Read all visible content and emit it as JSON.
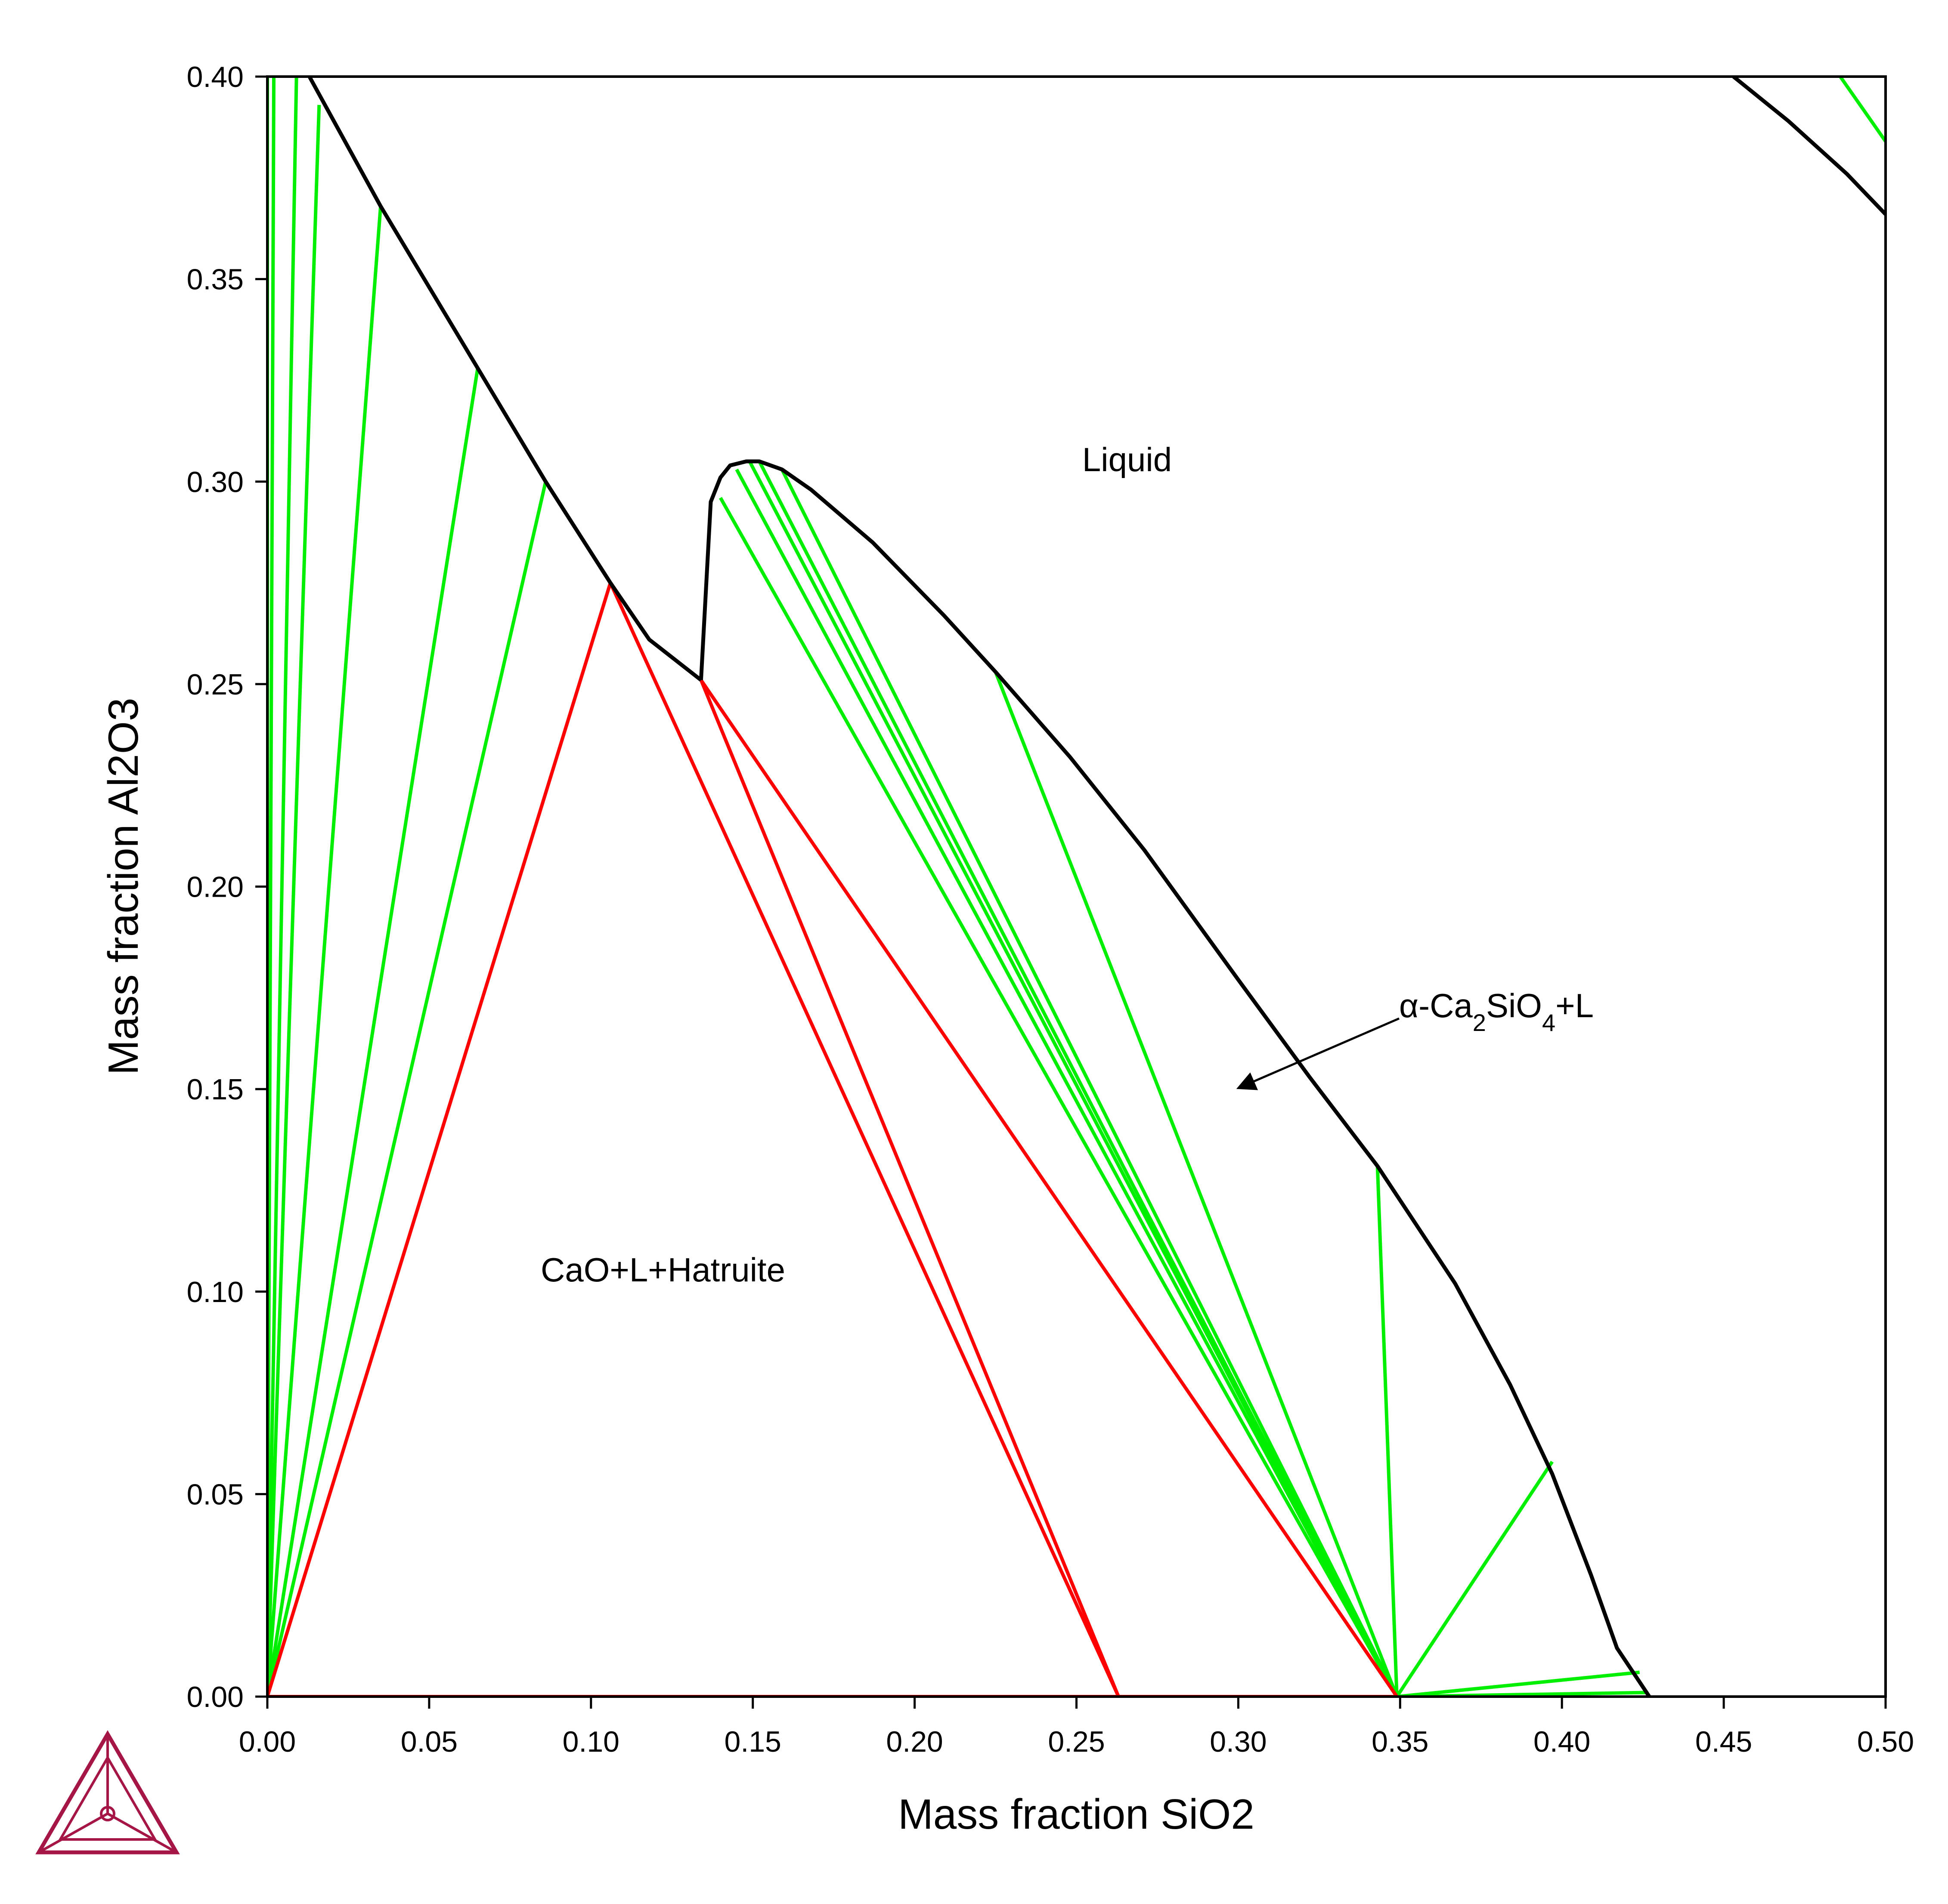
{
  "chart_data": {
    "type": "line",
    "xlabel": "Mass fraction SiO2",
    "ylabel": "Mass fraction Al2O3",
    "xlim": [
      0,
      0.5
    ],
    "ylim": [
      0,
      0.4
    ],
    "x_ticks": [
      "0.00",
      "0.05",
      "0.10",
      "0.15",
      "0.20",
      "0.25",
      "0.30",
      "0.35",
      "0.40",
      "0.45",
      "0.50"
    ],
    "y_ticks": [
      "0.00",
      "0.05",
      "0.10",
      "0.15",
      "0.20",
      "0.25",
      "0.30",
      "0.35",
      "0.40"
    ],
    "grid": false,
    "colors": {
      "boundary": "#000000",
      "tie_line": "#00ee00",
      "invariant": "#ff0000",
      "logo": "#a51646"
    },
    "phase_boundaries": [
      {
        "points": [
          [
            0.013,
            0.4
          ],
          [
            0.035,
            0.368
          ],
          [
            0.065,
            0.328
          ],
          [
            0.086,
            0.3
          ],
          [
            0.106,
            0.275
          ],
          [
            0.118,
            0.261
          ],
          [
            0.134,
            0.251
          ]
        ]
      },
      {
        "points": [
          [
            0.134,
            0.251
          ],
          [
            0.137,
            0.295
          ],
          [
            0.14,
            0.301
          ],
          [
            0.143,
            0.304
          ],
          [
            0.148,
            0.305
          ],
          [
            0.152,
            0.305
          ],
          [
            0.159,
            0.303
          ],
          [
            0.168,
            0.298
          ],
          [
            0.187,
            0.285
          ],
          [
            0.209,
            0.267
          ],
          [
            0.225,
            0.253
          ],
          [
            0.248,
            0.232
          ],
          [
            0.271,
            0.209
          ],
          [
            0.3,
            0.177
          ],
          [
            0.322,
            0.153
          ],
          [
            0.343,
            0.131
          ],
          [
            0.367,
            0.102
          ],
          [
            0.384,
            0.077
          ],
          [
            0.397,
            0.055
          ],
          [
            0.409,
            0.03
          ],
          [
            0.417,
            0.012
          ],
          [
            0.427,
            0.0
          ]
        ]
      },
      {
        "points": [
          [
            0.453,
            0.4
          ],
          [
            0.47,
            0.389
          ],
          [
            0.488,
            0.376
          ],
          [
            0.5,
            0.366
          ]
        ]
      }
    ],
    "tie_lines": [
      [
        [
          0,
          0
        ],
        [
          0.0,
          0.4
        ]
      ],
      [
        [
          0,
          0
        ],
        [
          0.002,
          0.4
        ]
      ],
      [
        [
          0,
          0
        ],
        [
          0.009,
          0.4
        ]
      ],
      [
        [
          0,
          0
        ],
        [
          0.016,
          0.393
        ]
      ],
      [
        [
          0,
          0
        ],
        [
          0.035,
          0.368
        ]
      ],
      [
        [
          0,
          0
        ],
        [
          0.065,
          0.328
        ]
      ],
      [
        [
          0,
          0
        ],
        [
          0.086,
          0.3
        ]
      ],
      [
        [
          0.349,
          0
        ],
        [
          0.14,
          0.296
        ]
      ],
      [
        [
          0.349,
          0
        ],
        [
          0.145,
          0.303
        ]
      ],
      [
        [
          0.349,
          0
        ],
        [
          0.149,
          0.305
        ]
      ],
      [
        [
          0.349,
          0
        ],
        [
          0.152,
          0.305
        ]
      ],
      [
        [
          0.349,
          0
        ],
        [
          0.159,
          0.303
        ]
      ],
      [
        [
          0.349,
          0
        ],
        [
          0.225,
          0.253
        ]
      ],
      [
        [
          0.349,
          0
        ],
        [
          0.343,
          0.131
        ]
      ],
      [
        [
          0.349,
          0
        ],
        [
          0.397,
          0.058
        ]
      ],
      [
        [
          0.349,
          0
        ],
        [
          0.424,
          0.006
        ]
      ],
      [
        [
          0.349,
          0
        ],
        [
          0.426,
          0.001
        ]
      ],
      [
        [
          0.486,
          0.4
        ],
        [
          0.5,
          0.384
        ]
      ]
    ],
    "invariant_lines": [
      [
        [
          0,
          0
        ],
        [
          0.106,
          0.275
        ]
      ],
      [
        [
          0.106,
          0.275
        ],
        [
          0.263,
          0
        ]
      ],
      [
        [
          0.134,
          0.251
        ],
        [
          0.263,
          0
        ]
      ],
      [
        [
          0.134,
          0.251
        ],
        [
          0.349,
          0
        ]
      ],
      [
        [
          0,
          0
        ],
        [
          0.349,
          0
        ]
      ]
    ],
    "annotations": [
      {
        "text": "Liquid",
        "x": 0.265,
        "y": 0.304
      },
      {
        "text": "CaO+L+Hatruite",
        "x": 0.123,
        "y": 0.104
      },
      {
        "text": "α-Ca2SiO4+L",
        "x": 0.35,
        "y": 0.168,
        "arrow_to": [
          0.3,
          0.15
        ]
      }
    ]
  }
}
